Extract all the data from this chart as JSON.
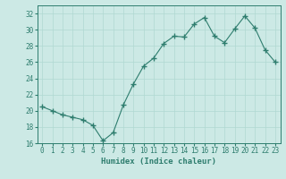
{
  "x": [
    0,
    1,
    2,
    3,
    4,
    5,
    6,
    7,
    8,
    9,
    10,
    11,
    12,
    13,
    14,
    15,
    16,
    17,
    18,
    19,
    20,
    21,
    22,
    23
  ],
  "y": [
    20.5,
    20.0,
    19.5,
    19.2,
    18.9,
    18.2,
    16.3,
    17.3,
    20.7,
    23.3,
    25.5,
    26.5,
    28.3,
    29.2,
    29.1,
    30.7,
    31.5,
    29.2,
    28.4,
    30.1,
    31.7,
    30.2,
    27.5,
    26.0
  ],
  "line_color": "#2e7d6e",
  "marker": "+",
  "marker_size": 4,
  "bg_color": "#cce9e5",
  "grid_color": "#b0d8d2",
  "xlabel": "Humidex (Indice chaleur)",
  "xlim": [
    -0.5,
    23.5
  ],
  "ylim": [
    16,
    33
  ],
  "yticks": [
    16,
    18,
    20,
    22,
    24,
    26,
    28,
    30,
    32
  ],
  "xticks": [
    0,
    1,
    2,
    3,
    4,
    5,
    6,
    7,
    8,
    9,
    10,
    11,
    12,
    13,
    14,
    15,
    16,
    17,
    18,
    19,
    20,
    21,
    22,
    23
  ],
  "axis_color": "#2e7d6e",
  "tick_color": "#2e7d6e",
  "label_fontsize": 6.5,
  "tick_fontsize": 5.5,
  "line_width": 0.8,
  "marker_color": "#2e7d6e"
}
